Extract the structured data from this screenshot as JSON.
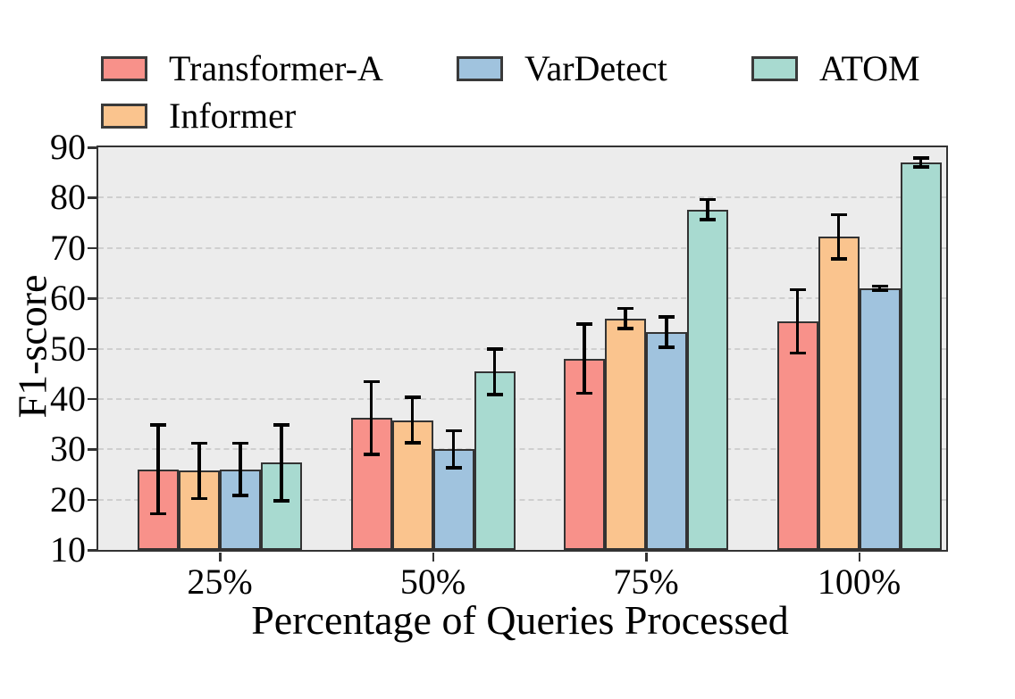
{
  "chart_data": {
    "type": "bar",
    "title": "",
    "xlabel": "Percentage of Queries Processed",
    "ylabel": "F1-score",
    "categories": [
      "25%",
      "50%",
      "75%",
      "100%"
    ],
    "series": [
      {
        "name": "Transformer-A",
        "color": "#F8918A",
        "values": [
          26.0,
          36.2,
          48.0,
          55.4
        ],
        "errors": [
          8.8,
          7.2,
          6.9,
          6.3
        ]
      },
      {
        "name": "Informer",
        "color": "#FAC48E",
        "values": [
          25.7,
          35.8,
          56.0,
          72.2
        ],
        "errors": [
          5.5,
          4.5,
          2.0,
          4.4
        ]
      },
      {
        "name": "VarDetect",
        "color": "#A0C3DE",
        "values": [
          26.0,
          30.0,
          53.3,
          62.0
        ],
        "errors": [
          5.2,
          3.7,
          3.0,
          0.4
        ]
      },
      {
        "name": "ATOM",
        "color": "#A8DAD0",
        "values": [
          27.3,
          45.4,
          77.6,
          87.0
        ],
        "errors": [
          7.5,
          4.5,
          2.0,
          0.9
        ]
      }
    ],
    "ylim": [
      10,
      90
    ],
    "yticks": [
      10,
      20,
      30,
      40,
      50,
      60,
      70,
      80,
      90
    ],
    "grid": "horizontal-dashed",
    "legend_position": "top",
    "legend_row_order": [
      [
        "Transformer-A",
        "VarDetect",
        "ATOM"
      ],
      [
        "Informer"
      ]
    ],
    "error_bars": true
  },
  "styles": {
    "plot_bg": "#ECECEC",
    "grid_color": "#CFCFCF",
    "bar_edge": "#333333",
    "error_color": "#000000",
    "text_color": "#000000"
  }
}
